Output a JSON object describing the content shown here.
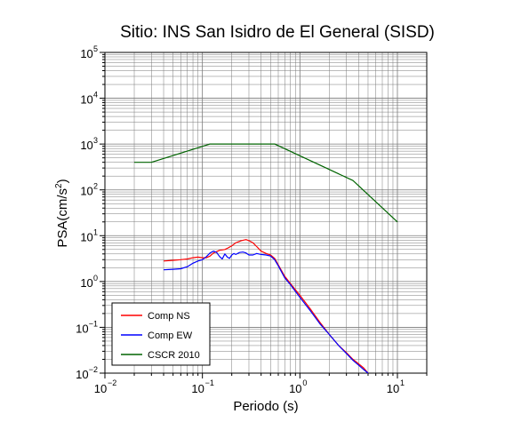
{
  "chart_data": {
    "type": "line",
    "title": "Sitio: INS San Isidro de El General (SISD)",
    "xlabel": "Periodo (s)",
    "ylabel_parts": {
      "base": "PSA(cm/s",
      "sup": "2",
      "close": ")"
    },
    "x_scale": "log",
    "y_scale": "log",
    "xlim": [
      0.01,
      20
    ],
    "ylim": [
      0.01,
      100000
    ],
    "x_ticks": [
      {
        "value": 0.01,
        "base": "10",
        "exp": "−2"
      },
      {
        "value": 0.1,
        "base": "10",
        "exp": "−1"
      },
      {
        "value": 1,
        "base": "10",
        "exp": "0"
      },
      {
        "value": 10,
        "base": "10",
        "exp": "1"
      }
    ],
    "y_ticks": [
      {
        "value": 0.01,
        "base": "10",
        "exp": "−2"
      },
      {
        "value": 0.1,
        "base": "10",
        "exp": "−1"
      },
      {
        "value": 1,
        "base": "10",
        "exp": "0"
      },
      {
        "value": 10,
        "base": "10",
        "exp": "1"
      },
      {
        "value": 100,
        "base": "10",
        "exp": "2"
      },
      {
        "value": 1000,
        "base": "10",
        "exp": "3"
      },
      {
        "value": 10000,
        "base": "10",
        "exp": "4"
      },
      {
        "value": 100000,
        "base": "10",
        "exp": "5"
      }
    ],
    "grid": true,
    "legend_position": "bottom-left",
    "series": [
      {
        "name": "Comp NS",
        "color": "#ff0000",
        "x": [
          0.04,
          0.05,
          0.06,
          0.07,
          0.08,
          0.09,
          0.1,
          0.11,
          0.12,
          0.13,
          0.14,
          0.15,
          0.16,
          0.17,
          0.18,
          0.2,
          0.22,
          0.25,
          0.28,
          0.3,
          0.33,
          0.36,
          0.4,
          0.45,
          0.5,
          0.55,
          0.6,
          0.7,
          0.8,
          1.0,
          1.3,
          1.6,
          2.0,
          2.5,
          3.0,
          3.5,
          4.0,
          4.5,
          5.0
        ],
        "y": [
          2.8,
          2.9,
          3.0,
          3.1,
          3.3,
          3.4,
          3.3,
          3.3,
          3.6,
          4.2,
          4.5,
          4.8,
          4.9,
          5.0,
          5.3,
          6.0,
          7.0,
          7.8,
          8.2,
          7.8,
          7.0,
          5.8,
          4.6,
          4.1,
          3.8,
          3.2,
          2.3,
          1.3,
          0.9,
          0.5,
          0.24,
          0.13,
          0.07,
          0.04,
          0.028,
          0.02,
          0.016,
          0.013,
          0.01
        ]
      },
      {
        "name": "Comp EW",
        "color": "#0000ff",
        "x": [
          0.04,
          0.05,
          0.06,
          0.07,
          0.08,
          0.09,
          0.1,
          0.11,
          0.12,
          0.13,
          0.14,
          0.15,
          0.16,
          0.17,
          0.18,
          0.19,
          0.2,
          0.21,
          0.22,
          0.24,
          0.26,
          0.28,
          0.3,
          0.33,
          0.36,
          0.4,
          0.45,
          0.5,
          0.55,
          0.6,
          0.7,
          0.8,
          1.0,
          1.3,
          1.6,
          2.0,
          2.5,
          3.0,
          3.5,
          4.0,
          4.5,
          5.0
        ],
        "y": [
          1.8,
          1.85,
          1.9,
          2.1,
          2.5,
          2.8,
          3.0,
          3.5,
          4.2,
          4.6,
          4.3,
          3.5,
          3.1,
          4.0,
          3.4,
          3.2,
          3.8,
          4.1,
          3.9,
          4.3,
          4.4,
          4.2,
          3.8,
          3.8,
          4.1,
          3.9,
          3.8,
          3.6,
          3.0,
          2.2,
          1.2,
          0.85,
          0.45,
          0.22,
          0.12,
          0.07,
          0.04,
          0.027,
          0.019,
          0.015,
          0.012,
          0.01
        ]
      },
      {
        "name": "CSCR 2010",
        "color": "#006400",
        "x": [
          0.02,
          0.03,
          0.12,
          0.55,
          3.5,
          10.0
        ],
        "y": [
          400,
          400,
          1000,
          1000,
          160,
          20
        ]
      }
    ]
  }
}
